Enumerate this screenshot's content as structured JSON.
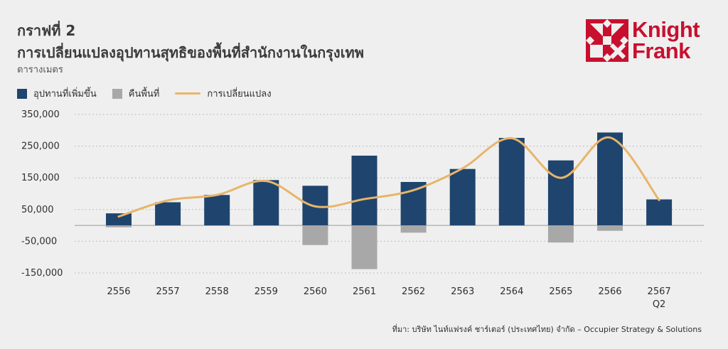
{
  "header": {
    "chart_number": "กราฟที่ 2",
    "title": "การเปลี่ยนแปลงอุปทานสุทธิของพื้นที่สำนักงานในกรุงเทพ",
    "unit": "ตารางเมตร"
  },
  "logo": {
    "line1": "Knight",
    "line2": "Frank",
    "color": "#c8102e"
  },
  "legend": [
    {
      "label": "อุปทานที่เพิ่มขึ้น",
      "color": "#1f456e",
      "kind": "box"
    },
    {
      "label": "คืนพื้นที่",
      "color": "#a8a8a8",
      "kind": "box"
    },
    {
      "label": "การเปลี่ยนแปลง",
      "color": "#e8b56a",
      "kind": "line"
    }
  ],
  "source": "ที่มา: บริษัท ไนท์แฟรงค์ ชาร์เตอร์ (ประเทศไทย) จำกัด – Occupier Strategy & Solutions",
  "chart_data": {
    "type": "bar",
    "categories": [
      "2556",
      "2557",
      "2558",
      "2559",
      "2560",
      "2561",
      "2562",
      "2563",
      "2564",
      "2565",
      "2566",
      "2567"
    ],
    "category_sublabels": [
      "",
      "",
      "",
      "",
      "",
      "",
      "",
      "",
      "",
      "",
      "",
      "Q2"
    ],
    "ylim": [
      -150000,
      350000
    ],
    "ytick_values": [
      350000,
      250000,
      150000,
      50000,
      -50000,
      -150000
    ],
    "ytick_labels": [
      "350,000",
      "250,000",
      "150,000",
      "50,000",
      "-50,000",
      "-150,000"
    ],
    "grid": true,
    "legend_position": "top-left",
    "series": [
      {
        "name": "อุปทานที่เพิ่มขึ้น",
        "type": "bar",
        "color": "#1f456e",
        "values": [
          38000,
          73000,
          96000,
          143000,
          125000,
          220000,
          137000,
          178000,
          276000,
          205000,
          293000,
          82000
        ]
      },
      {
        "name": "คืนพื้นที่",
        "type": "bar",
        "color": "#a8a8a8",
        "values": [
          -6000,
          0,
          0,
          0,
          -62000,
          -138000,
          -23000,
          0,
          0,
          -54000,
          -17000,
          0
        ]
      },
      {
        "name": "การเปลี่ยนแปลง",
        "type": "line",
        "color": "#e8b56a",
        "values": [
          28000,
          79000,
          96000,
          140000,
          60000,
          83000,
          111000,
          180000,
          275000,
          150000,
          277000,
          80000
        ]
      }
    ]
  }
}
